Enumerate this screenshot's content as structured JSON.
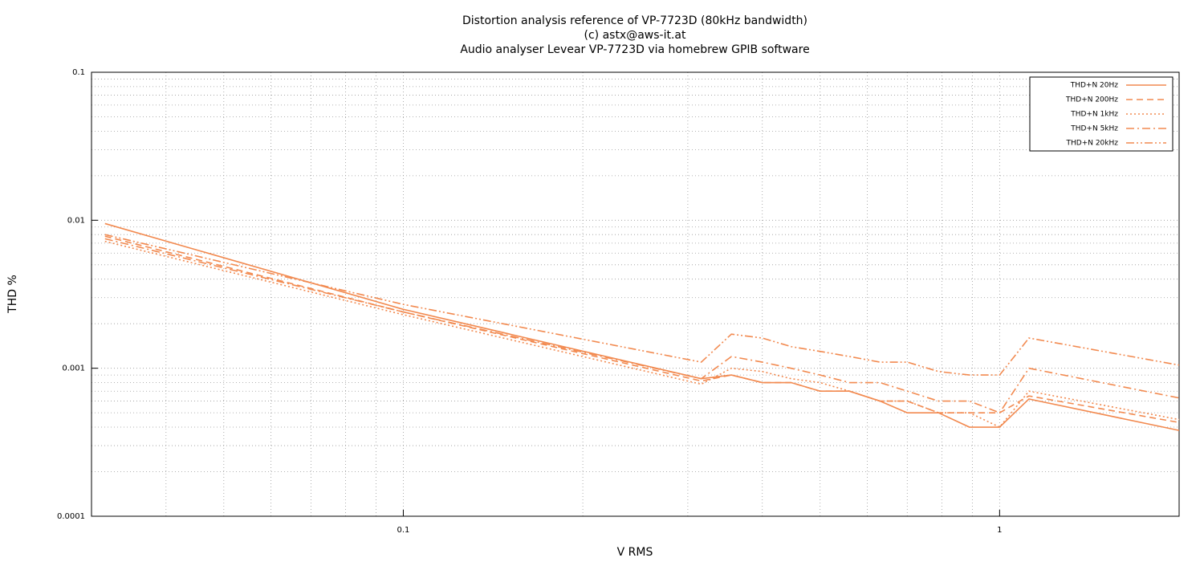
{
  "chart_data": {
    "type": "line",
    "title": "Distortion analysis reference of VP-7723D (80kHz bandwidth)",
    "subtitle": [
      "(c) astx@aws-it.at",
      "Audio analyser Levear VP-7723D via homebrew GPIB software"
    ],
    "x_label": "V RMS",
    "y_label": "THD %",
    "log_x": true,
    "log_y": true,
    "grid": true,
    "legend": "top-right",
    "xlim": [
      0.03,
      2
    ],
    "ylim": [
      0.0001,
      0.1
    ],
    "xticks": [
      0.1,
      1
    ],
    "yticks": [
      0.0001,
      0.001,
      0.01,
      0.1
    ],
    "x": [
      0.0316,
      0.1,
      0.316,
      0.355,
      0.4,
      0.447,
      0.5,
      0.56,
      0.63,
      0.7,
      0.79,
      0.89,
      1.0,
      1.12,
      2.0
    ],
    "series": [
      {
        "name": "THD+N 20Hz",
        "color": "#f28a50",
        "dash": "none",
        "values": [
          0.0095,
          0.0025,
          0.00085,
          0.0009,
          0.0008,
          0.0008,
          0.0007,
          0.0007,
          0.0006,
          0.0005,
          0.0005,
          0.0004,
          0.0004,
          0.00062,
          0.00038
        ]
      },
      {
        "name": "THD+N 200Hz",
        "color": "#f28a50",
        "dash": "8 5",
        "values": [
          0.0078,
          0.0024,
          0.00082,
          0.0009,
          0.0008,
          0.0008,
          0.0007,
          0.0007,
          0.0006,
          0.0006,
          0.0005,
          0.0005,
          0.0005,
          0.00065,
          0.00043
        ]
      },
      {
        "name": "THD+N 1kHz",
        "color": "#f28a50",
        "dash": "2 3",
        "values": [
          0.0072,
          0.0023,
          0.00078,
          0.001,
          0.00095,
          0.00085,
          0.0008,
          0.0007,
          0.0006,
          0.0006,
          0.0005,
          0.0005,
          0.0004,
          0.0007,
          0.00045
        ]
      },
      {
        "name": "THD+N 5kHz",
        "color": "#f28a50",
        "dash": "10 4 2 4",
        "values": [
          0.0075,
          0.0024,
          0.00085,
          0.0012,
          0.0011,
          0.001,
          0.0009,
          0.0008,
          0.0008,
          0.0007,
          0.0006,
          0.0006,
          0.0005,
          0.001,
          0.00063
        ]
      },
      {
        "name": "THD+N 20kHz",
        "color": "#f28a50",
        "dash": "10 3 2 3 2 3",
        "values": [
          0.008,
          0.0027,
          0.0011,
          0.0017,
          0.0016,
          0.0014,
          0.0013,
          0.0012,
          0.0011,
          0.0011,
          0.00095,
          0.0009,
          0.0009,
          0.0016,
          0.00105
        ]
      }
    ]
  }
}
